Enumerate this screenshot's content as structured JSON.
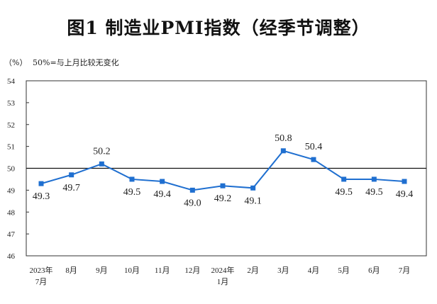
{
  "chart_data": {
    "type": "line",
    "title": "图1  制造业PMI指数（经季节调整）",
    "ylabel": "（%）",
    "annotation": "50%=与上月比较无变化",
    "categories": [
      [
        "2023年",
        "7月"
      ],
      [
        "8月"
      ],
      [
        "9月"
      ],
      [
        "10月"
      ],
      [
        "11月"
      ],
      [
        "12月"
      ],
      [
        "2024年",
        "1月"
      ],
      [
        "2月"
      ],
      [
        "3月"
      ],
      [
        "4月"
      ],
      [
        "5月"
      ],
      [
        "6月"
      ],
      [
        "7月"
      ]
    ],
    "series": [
      {
        "name": "制造业PMI",
        "values": [
          49.3,
          49.7,
          50.2,
          49.5,
          49.4,
          49.0,
          49.2,
          49.1,
          50.8,
          50.4,
          49.5,
          49.5,
          49.4
        ],
        "color": "#1f6fd0"
      }
    ],
    "data_labels": [
      "49.3",
      "49.7",
      "50.2",
      "49.5",
      "49.4",
      "49.0",
      "49.2",
      "49.1",
      "50.8",
      "50.4",
      "49.5",
      "49.5",
      "49.4"
    ],
    "ylim": [
      46,
      54
    ],
    "yticks": [
      "46",
      "47",
      "48",
      "49",
      "50",
      "51",
      "52",
      "53",
      "54"
    ],
    "reference_line": 50,
    "grid": false
  }
}
